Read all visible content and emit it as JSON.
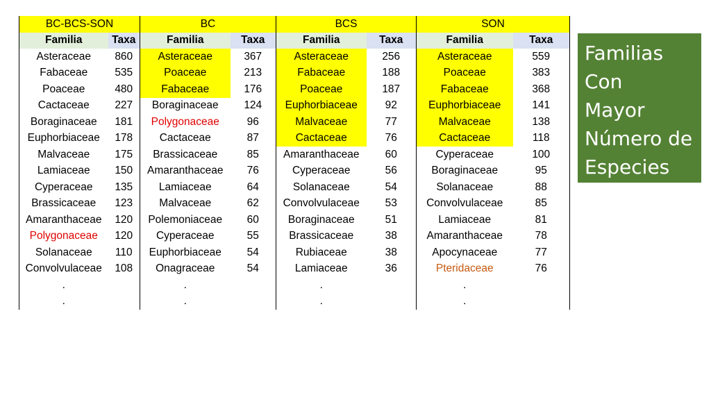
{
  "groups": [
    "BC-BCS-SON",
    "BC",
    "BCS",
    "SON"
  ],
  "subheaders": [
    "Familia",
    "Taxa",
    "Familia",
    "Taxa",
    "Familia",
    "Taxa",
    "Familia",
    "Taxa"
  ],
  "rows": [
    [
      {
        "f": "Asteraceae",
        "t": "860"
      },
      {
        "f": "Asteraceae",
        "t": "367",
        "hl": true
      },
      {
        "f": "Asteraceae",
        "t": "256",
        "hl": true
      },
      {
        "f": "Asteraceae",
        "t": "559",
        "hl": true
      }
    ],
    [
      {
        "f": "Fabaceae",
        "t": "535"
      },
      {
        "f": "Poaceae",
        "t": "213",
        "hl": true
      },
      {
        "f": "Fabaceae",
        "t": "188",
        "hl": true
      },
      {
        "f": "Poaceae",
        "t": "383",
        "hl": true
      }
    ],
    [
      {
        "f": "Poaceae",
        "t": "480"
      },
      {
        "f": "Fabaceae",
        "t": "176",
        "hl": true
      },
      {
        "f": "Poaceae",
        "t": "187",
        "hl": true
      },
      {
        "f": "Fabaceae",
        "t": "368",
        "hl": true
      }
    ],
    [
      {
        "f": "Cactaceae",
        "t": "227"
      },
      {
        "f": "Boraginaceae",
        "t": "124"
      },
      {
        "f": "Euphorbiaceae",
        "t": "92",
        "hl": true
      },
      {
        "f": "Euphorbiaceae",
        "t": "141",
        "hl": true
      }
    ],
    [
      {
        "f": "Boraginaceae",
        "t": "181"
      },
      {
        "f": "Polygonaceae",
        "t": "96",
        "color": "red"
      },
      {
        "f": "Malvaceae",
        "t": "77",
        "hl": true
      },
      {
        "f": "Malvaceae",
        "t": "138",
        "hl": true
      }
    ],
    [
      {
        "f": "Euphorbiaceae",
        "t": "178"
      },
      {
        "f": "Cactaceae",
        "t": "87"
      },
      {
        "f": "Cactaceae",
        "t": "76",
        "hl": true
      },
      {
        "f": "Cactaceae",
        "t": "118",
        "hl": true
      }
    ],
    [
      {
        "f": "Malvaceae",
        "t": "175"
      },
      {
        "f": "Brassicaceae",
        "t": "85"
      },
      {
        "f": "Amaranthaceae",
        "t": "60"
      },
      {
        "f": "Cyperaceae",
        "t": "100"
      }
    ],
    [
      {
        "f": "Lamiaceae",
        "t": "150"
      },
      {
        "f": "Amaranthaceae",
        "t": "76"
      },
      {
        "f": "Cyperaceae",
        "t": "56"
      },
      {
        "f": "Boraginaceae",
        "t": "95"
      }
    ],
    [
      {
        "f": "Cyperaceae",
        "t": "135"
      },
      {
        "f": "Lamiaceae",
        "t": "64"
      },
      {
        "f": "Solanaceae",
        "t": "54"
      },
      {
        "f": "Solanaceae",
        "t": "88"
      }
    ],
    [
      {
        "f": "Brassicaceae",
        "t": "123"
      },
      {
        "f": "Malvaceae",
        "t": "62"
      },
      {
        "f": "Convolvulaceae",
        "t": "53"
      },
      {
        "f": "Convolvulaceae",
        "t": "85"
      }
    ],
    [
      {
        "f": "Amaranthaceae",
        "t": "120"
      },
      {
        "f": "Polemoniaceae",
        "t": "60"
      },
      {
        "f": "Boraginaceae",
        "t": "51"
      },
      {
        "f": "Lamiaceae",
        "t": "81"
      }
    ],
    [
      {
        "f": "Polygonaceae",
        "t": "120",
        "color": "red"
      },
      {
        "f": "Cyperaceae",
        "t": "55"
      },
      {
        "f": "Brassicaceae",
        "t": "38"
      },
      {
        "f": "Amaranthaceae",
        "t": "78"
      }
    ],
    [
      {
        "f": "Solanaceae",
        "t": "110"
      },
      {
        "f": "Euphorbiaceae",
        "t": "54"
      },
      {
        "f": "Rubiaceae",
        "t": "38"
      },
      {
        "f": "Apocynaceae",
        "t": "77"
      }
    ],
    [
      {
        "f": "Convolvulaceae",
        "t": "108"
      },
      {
        "f": "Onagraceae",
        "t": "54"
      },
      {
        "f": "Lamiaceae",
        "t": "36"
      },
      {
        "f": "Pteridaceae",
        "t": "76",
        "color": "orange"
      }
    ],
    [
      {
        "f": ".",
        "t": ""
      },
      {
        "f": ".",
        "t": ""
      },
      {
        "f": ".",
        "t": ""
      },
      {
        "f": ".",
        "t": ""
      }
    ],
    [
      {
        "f": ".",
        "t": ""
      },
      {
        "f": ".",
        "t": ""
      },
      {
        "f": ".",
        "t": ""
      },
      {
        "f": ".",
        "t": ""
      }
    ]
  ],
  "side_title": [
    "Familias",
    "Con",
    "Mayor",
    "Número de",
    "Especies"
  ],
  "colors": {
    "highlight": "#ffff00",
    "red_text": "#e00000",
    "orange_text": "#c55a11",
    "header_familia": "#e2efda",
    "header_taxa": "#d9e1f2",
    "title_box": "#548235"
  }
}
